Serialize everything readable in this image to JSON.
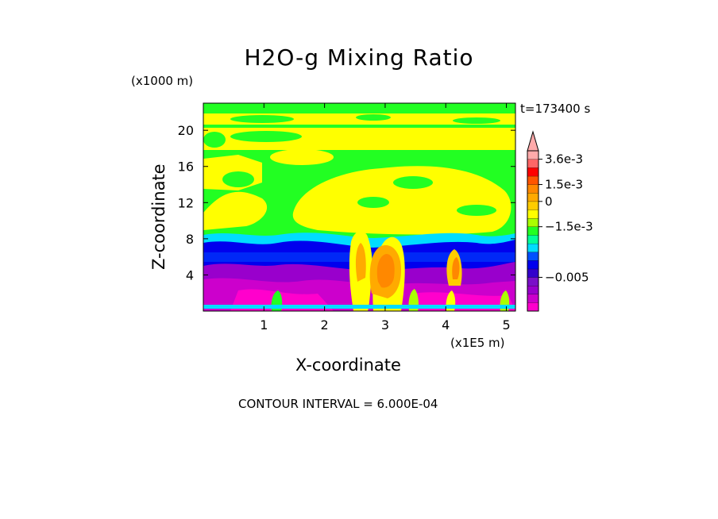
{
  "chart_data": {
    "type": "heatmap",
    "title": "H2O-g Mixing Ratio",
    "xlabel": "X-coordinate",
    "ylabel": "Z-coordinate",
    "x_units": "(x1E5 m)",
    "z_units": "(x1000 m)",
    "time_label": "t=173400 s",
    "contour_interval_text": "CONTOUR INTERVAL = 6.000E-04",
    "xlim": [
      0,
      5.15
    ],
    "ylim": [
      0,
      23
    ],
    "x_ticks": [
      1,
      2,
      3,
      4,
      5
    ],
    "y_ticks": [
      4,
      8,
      12,
      16,
      20
    ],
    "colorbar": {
      "colors": [
        "#ff00cc",
        "#cc00cc",
        "#9900cc",
        "#7a10c8",
        "#3300cc",
        "#0000ee",
        "#0050ff",
        "#00ddff",
        "#00ff99",
        "#22ff22",
        "#aaff00",
        "#ffff00",
        "#ffcc00",
        "#ffaa00",
        "#ff8800",
        "#ff5500",
        "#ff0000",
        "#ff6666",
        "#ffaaaa"
      ],
      "extend_max": true,
      "labels": [
        {
          "text": "3.6e-3",
          "level": 18
        },
        {
          "text": "1.5e-3",
          "level": 15
        },
        {
          "text": "0",
          "level": 13
        },
        {
          "text": "−1.5e-3",
          "level": 10
        },
        {
          "text": "−0.005",
          "level": 4
        }
      ]
    },
    "bands": [
      {
        "z_min": 21.5,
        "z_max": 23,
        "value": "0 to 6.0e-4 (green)"
      },
      {
        "z_min": 19,
        "z_max": 21.5,
        "value": "6.0e-4 to 1.2e-3 (yellow)"
      },
      {
        "z_min": 9,
        "z_max": 19,
        "value": "mixed green / yellow"
      },
      {
        "z_min": 7.5,
        "z_max": 9,
        "value": "-1.2e-3 to 0 (cyan)"
      },
      {
        "z_min": 5,
        "z_max": 7.5,
        "value": "-2.4e-3 to -1.5e-3 (blue)"
      },
      {
        "z_min": 0.5,
        "z_max": 5,
        "value": "-0.005 and below (purple / magenta)"
      },
      {
        "z_min": 2,
        "z_max": 8,
        "x_min": 2.4,
        "x_max": 3.4,
        "value": "up to 3.0e-3 (orange plume)"
      }
    ]
  }
}
